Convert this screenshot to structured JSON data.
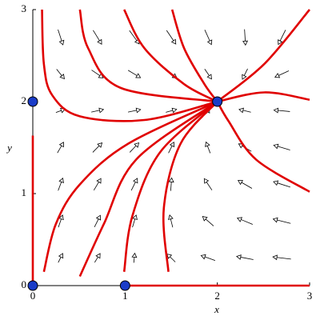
{
  "chart_data": {
    "type": "phase_portrait",
    "xlabel": "x",
    "ylabel": "y",
    "xlim": [
      0,
      3
    ],
    "ylim": [
      0,
      3
    ],
    "xticks": [
      0,
      1,
      2,
      3
    ],
    "yticks": [
      0,
      1,
      2,
      3
    ],
    "line_color": "#e00000",
    "point_color": "#1a3cc8",
    "arrow_color": "#000000",
    "field": {
      "x": [
        0.3,
        0.7,
        1.1,
        1.5,
        1.9,
        2.3,
        2.7
      ],
      "y": [
        0.3,
        0.7,
        1.1,
        1.5,
        1.9,
        2.3,
        2.7
      ],
      "u": [
        [
          0.255,
          0.315,
          0.055,
          -0.525,
          -1.425,
          -2.645,
          -4.185
        ],
        [
          0.315,
          0.455,
          0.275,
          -0.225,
          -1.045,
          -2.185,
          -3.645
        ],
        [
          0.375,
          0.595,
          0.495,
          0.075,
          -0.665,
          -1.725,
          -3.105
        ],
        [
          0.435,
          0.735,
          0.715,
          0.375,
          -0.285,
          -1.265,
          -2.565
        ],
        [
          0.495,
          0.875,
          0.935,
          0.675,
          0.095,
          -0.805,
          -2.025
        ],
        [
          0.555,
          1.015,
          1.155,
          0.975,
          0.475,
          -0.345,
          -1.485
        ],
        [
          0.615,
          1.155,
          1.375,
          1.275,
          0.855,
          0.115,
          -0.945
        ]
      ],
      "v": [
        [
          0.51,
          0.51,
          0.51,
          0.51,
          0.51,
          0.51,
          0.51
        ],
        [
          0.91,
          0.91,
          0.91,
          0.91,
          0.91,
          0.91,
          0.91
        ],
        [
          0.99,
          0.99,
          0.99,
          0.99,
          0.99,
          0.99,
          0.99
        ],
        [
          0.75,
          0.75,
          0.75,
          0.75,
          0.75,
          0.75,
          0.75
        ],
        [
          0.19,
          0.19,
          0.19,
          0.19,
          0.19,
          0.19,
          0.19
        ],
        [
          -0.69,
          -0.69,
          -0.69,
          -0.69,
          -0.69,
          -0.69,
          -0.69
        ],
        [
          -1.89,
          -1.89,
          -1.89,
          -1.89,
          -1.89,
          -1.89,
          -1.89
        ]
      ]
    },
    "series": [
      {
        "x": [
          0.1,
          0.12,
          0.21,
          0.51,
          1.21,
          2
        ],
        "y": [
          3,
          2.41,
          2.07,
          1.84,
          1.8,
          2
        ]
      },
      {
        "x": [
          0.51,
          0.6,
          0.95,
          2
        ],
        "y": [
          3,
          2.58,
          2.15,
          2
        ]
      },
      {
        "x": [
          0.99,
          1.21,
          1.64,
          2
        ],
        "y": [
          3,
          2.58,
          2.19,
          2
        ]
      },
      {
        "x": [
          1.51,
          1.64,
          1.86,
          2
        ],
        "y": [
          3,
          2.58,
          2.19,
          2
        ]
      },
      {
        "x": [
          3,
          2.51,
          2
        ],
        "y": [
          3,
          2.41,
          2
        ]
      },
      {
        "x": [
          3,
          2.51,
          2
        ],
        "y": [
          2.02,
          2.1,
          2
        ]
      },
      {
        "x": [
          3,
          2.42,
          2.12,
          2
        ],
        "y": [
          1.02,
          1.37,
          1.79,
          2
        ]
      },
      {
        "x": [
          0.12,
          0.25,
          0.51,
          1.03,
          2
        ],
        "y": [
          0.15,
          0.67,
          1.1,
          1.54,
          2
        ]
      },
      {
        "x": [
          0.51,
          0.77,
          1.12,
          2
        ],
        "y": [
          0.1,
          0.67,
          1.37,
          2
        ]
      },
      {
        "x": [
          0.99,
          1.08,
          1.38,
          2
        ],
        "y": [
          0.15,
          0.76,
          1.45,
          2
        ]
      },
      {
        "x": [
          1.47,
          1.42,
          1.6,
          2
        ],
        "y": [
          0.15,
          0.84,
          1.54,
          2
        ]
      },
      {
        "x": [
          0,
          0
        ],
        "y": [
          0.03,
          1.63
        ]
      },
      {
        "x": [
          1.05,
          3
        ],
        "y": [
          0,
          0
        ]
      }
    ],
    "points": {
      "x": [
        0,
        1,
        0,
        2
      ],
      "y": [
        0,
        0,
        2,
        2
      ]
    }
  }
}
